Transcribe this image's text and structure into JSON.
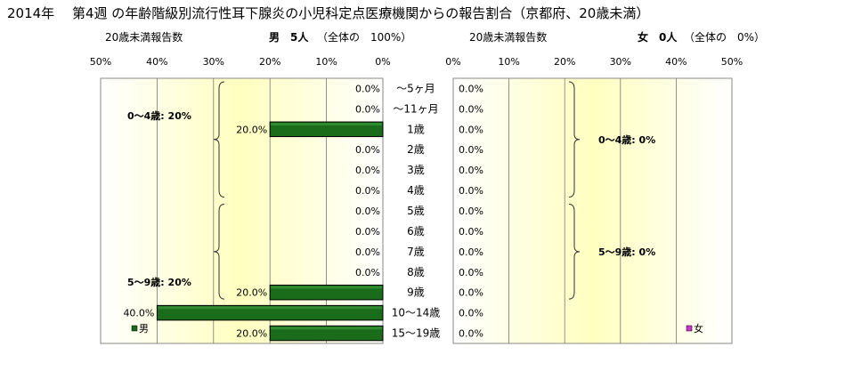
{
  "title": "2014年　 第4週 の年齢階級別流行性耳下腺炎の小児科定点医療機関からの報告割合（京都府、20歳未満）",
  "male_header": {
    "left": "20歳未満報告数",
    "count": "男　5人",
    "share": "（全体の　100%）"
  },
  "female_header": {
    "left": "20歳未満報告数",
    "count": "女　0人",
    "share": "（全体の　0%）"
  },
  "colors": {
    "male_bar": "#1a6b1a",
    "female_marker": "#cc33cc",
    "plot_bg_center": "#ffffc0",
    "plot_bg_edge": "#ffffff"
  },
  "chart_data": [
    {
      "type": "bar",
      "orientation": "horizontal",
      "direction": "right-to-left",
      "xlim": [
        0,
        50
      ],
      "x_ticks": [
        "50%",
        "40%",
        "30%",
        "20%",
        "10%",
        "0%"
      ],
      "categories": [
        "～5ヶ月",
        "～11ヶ月",
        "1歳",
        "2歳",
        "3歳",
        "4歳",
        "5歳",
        "6歳",
        "7歳",
        "8歳",
        "9歳",
        "10～14歳",
        "15～19歳"
      ],
      "series": [
        {
          "name": "男",
          "values": [
            0,
            0,
            20,
            0,
            0,
            0,
            0,
            0,
            0,
            0,
            20,
            40,
            20
          ],
          "labels": [
            "0.0%",
            "0.0%",
            "20.0%",
            "0.0%",
            "0.0%",
            "0.0%",
            "0.0%",
            "0.0%",
            "0.0%",
            "0.0%",
            "20.0%",
            "40.0%",
            "20.0%"
          ]
        }
      ],
      "groups": [
        {
          "label": "0～4歳: 20%",
          "from": "～5ヶ月",
          "to": "4歳"
        },
        {
          "label": "5～9歳: 20%",
          "from": "5歳",
          "to": "9歳"
        }
      ],
      "legend": {
        "label": "男",
        "position": "bottom-left"
      }
    },
    {
      "type": "bar",
      "orientation": "horizontal",
      "direction": "left-to-right",
      "xlim": [
        0,
        50
      ],
      "x_ticks": [
        "0%",
        "10%",
        "20%",
        "30%",
        "40%",
        "50%"
      ],
      "categories": [
        "～5ヶ月",
        "～11ヶ月",
        "1歳",
        "2歳",
        "3歳",
        "4歳",
        "5歳",
        "6歳",
        "7歳",
        "8歳",
        "9歳",
        "10～14歳",
        "15～19歳"
      ],
      "series": [
        {
          "name": "女",
          "values": [
            0,
            0,
            0,
            0,
            0,
            0,
            0,
            0,
            0,
            0,
            0,
            0,
            0
          ],
          "labels": [
            "0.0%",
            "0.0%",
            "0.0%",
            "0.0%",
            "0.0%",
            "0.0%",
            "0.0%",
            "0.0%",
            "0.0%",
            "0.0%",
            "0.0%",
            "0.0%",
            "0.0%"
          ]
        }
      ],
      "groups": [
        {
          "label": "0～4歳:  0%",
          "from": "～5ヶ月",
          "to": "4歳"
        },
        {
          "label": "5～9歳:  0%",
          "from": "5歳",
          "to": "9歳"
        }
      ],
      "legend": {
        "label": "女",
        "position": "bottom-right"
      }
    }
  ]
}
